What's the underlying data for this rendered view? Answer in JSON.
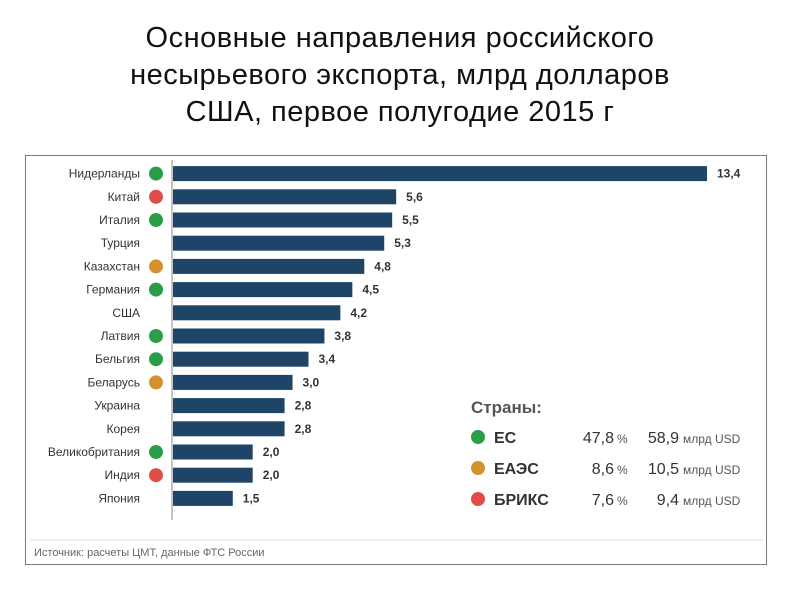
{
  "title": "Основные направления российского\nнесырьевого экспорта, млрд долларов\nСША, первое полугодие 2015 г",
  "colors": {
    "bar": "#1e4467",
    "ЕС": "#2a9d48",
    "БРИКС": "#e04c48",
    "ЕАЭС": "#d4922e"
  },
  "chart_data": {
    "type": "bar",
    "orientation": "horizontal",
    "categories": [
      "Нидерланды",
      "Китай",
      "Италия",
      "Турция",
      "Казахстан",
      "Германия",
      "США",
      "Латвия",
      "Бельгия",
      "Беларусь",
      "Украина",
      "Корея",
      "Великобритания",
      "Индия",
      "Япония"
    ],
    "values": [
      13.4,
      5.6,
      5.5,
      5.3,
      4.8,
      4.5,
      4.2,
      3.8,
      3.4,
      3.0,
      2.8,
      2.8,
      2.0,
      2.0,
      1.5
    ],
    "value_labels": [
      "13,4",
      "5,6",
      "5,5",
      "5,3",
      "4,8",
      "4,5",
      "4,2",
      "3,8",
      "3,4",
      "3,0",
      "2,8",
      "2,8",
      "2,0",
      "2,0",
      "1,5"
    ],
    "groups": [
      "ЕС",
      "БРИКС",
      "ЕС",
      "",
      "ЕАЭС",
      "ЕС",
      "",
      "ЕС",
      "ЕС",
      "ЕАЭС",
      "",
      "",
      "ЕС",
      "БРИКС",
      ""
    ],
    "xlim": [
      0,
      13.4
    ]
  },
  "legend": {
    "title": "Страны:",
    "items": [
      {
        "name": "ЕС",
        "group": "ЕС",
        "share": "47,8",
        "share_unit": "%",
        "amount": "58,9",
        "amount_unit": "млрд USD"
      },
      {
        "name": "ЕАЭС",
        "group": "ЕАЭС",
        "share": "8,6",
        "share_unit": "%",
        "amount": "10,5",
        "amount_unit": "млрд USD"
      },
      {
        "name": "БРИКС",
        "group": "БРИКС",
        "share": "7,6",
        "share_unit": "%",
        "amount": "9,4",
        "amount_unit": "млрд USD"
      }
    ]
  },
  "source": "Источник: расчеты ЦМТ, данные ФТС России"
}
